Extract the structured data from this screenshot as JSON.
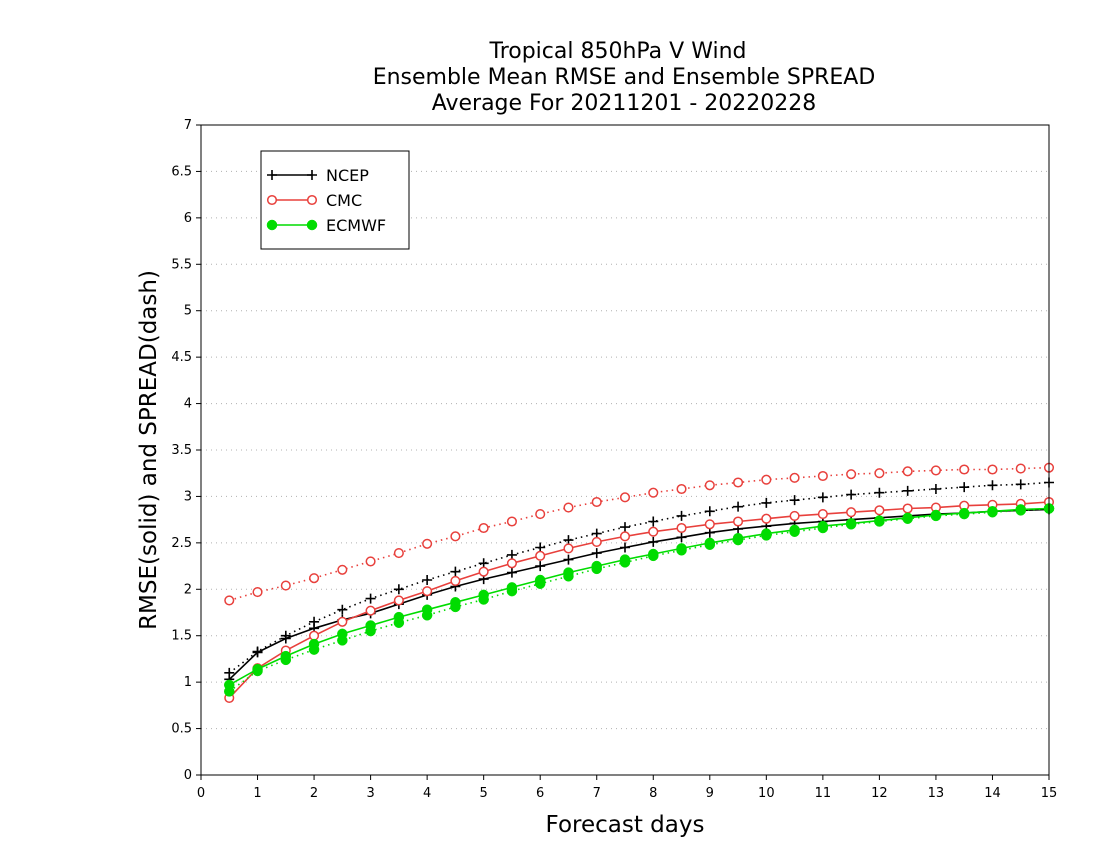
{
  "chart_data": {
    "type": "line",
    "title": [
      "Tropical 850hPa V Wind",
      "Ensemble Mean RMSE and Ensemble SPREAD",
      "Average For 20211201 - 20220228"
    ],
    "xlabel": "Forecast days",
    "ylabel": "RMSE(solid) and SPREAD(dash)",
    "xlim": [
      0,
      15
    ],
    "ylim": [
      0,
      7
    ],
    "xticks": [
      "0",
      "1",
      "2",
      "3",
      "4",
      "5",
      "6",
      "7",
      "8",
      "9",
      "10",
      "11",
      "12",
      "13",
      "14",
      "15"
    ],
    "yticks": [
      "0",
      "0.5",
      "1",
      "1.5",
      "2",
      "2.5",
      "3",
      "3.5",
      "4",
      "4.5",
      "5",
      "5.5",
      "6",
      "6.5",
      "7"
    ],
    "grid": "horizontal dotted",
    "legend_position": "top-left",
    "x": [
      0.5,
      1,
      1.5,
      2,
      2.5,
      3,
      3.5,
      4,
      4.5,
      5,
      5.5,
      6,
      6.5,
      7,
      7.5,
      8,
      8.5,
      9,
      9.5,
      10,
      10.5,
      11,
      11.5,
      12,
      12.5,
      13,
      13.5,
      14,
      14.5,
      15
    ],
    "series": [
      {
        "name": "NCEP",
        "color": "#000000",
        "marker": "plus",
        "rmse": [
          1.03,
          1.32,
          1.47,
          1.58,
          1.67,
          1.74,
          1.84,
          1.94,
          2.03,
          2.11,
          2.18,
          2.25,
          2.32,
          2.39,
          2.45,
          2.51,
          2.56,
          2.61,
          2.65,
          2.68,
          2.71,
          2.73,
          2.75,
          2.77,
          2.79,
          2.81,
          2.82,
          2.84,
          2.85,
          2.86
        ],
        "spread": [
          1.1,
          1.33,
          1.5,
          1.65,
          1.78,
          1.9,
          2.0,
          2.1,
          2.19,
          2.28,
          2.37,
          2.45,
          2.53,
          2.6,
          2.67,
          2.73,
          2.79,
          2.84,
          2.89,
          2.93,
          2.96,
          2.99,
          3.02,
          3.04,
          3.06,
          3.08,
          3.1,
          3.12,
          3.13,
          3.15
        ]
      },
      {
        "name": "CMC",
        "color": "#e8403c",
        "marker": "open-circle",
        "rmse": [
          0.83,
          1.15,
          1.34,
          1.5,
          1.65,
          1.77,
          1.88,
          1.98,
          2.09,
          2.19,
          2.28,
          2.36,
          2.44,
          2.51,
          2.57,
          2.62,
          2.66,
          2.7,
          2.73,
          2.76,
          2.79,
          2.81,
          2.83,
          2.85,
          2.87,
          2.88,
          2.9,
          2.91,
          2.92,
          2.94
        ],
        "spread": [
          1.88,
          1.97,
          2.04,
          2.12,
          2.21,
          2.3,
          2.39,
          2.49,
          2.57,
          2.66,
          2.73,
          2.81,
          2.88,
          2.94,
          2.99,
          3.04,
          3.08,
          3.12,
          3.15,
          3.18,
          3.2,
          3.22,
          3.24,
          3.25,
          3.27,
          3.28,
          3.29,
          3.29,
          3.3,
          3.31
        ]
      },
      {
        "name": "ECMWF",
        "color": "#00dc00",
        "marker": "filled-circle",
        "rmse": [
          0.97,
          1.14,
          1.28,
          1.41,
          1.52,
          1.61,
          1.7,
          1.78,
          1.86,
          1.94,
          2.02,
          2.1,
          2.18,
          2.25,
          2.32,
          2.38,
          2.44,
          2.5,
          2.55,
          2.6,
          2.64,
          2.68,
          2.71,
          2.74,
          2.77,
          2.8,
          2.82,
          2.84,
          2.86,
          2.87
        ],
        "spread": [
          0.9,
          1.12,
          1.24,
          1.35,
          1.45,
          1.55,
          1.64,
          1.72,
          1.81,
          1.89,
          1.98,
          2.06,
          2.14,
          2.22,
          2.29,
          2.36,
          2.42,
          2.48,
          2.53,
          2.58,
          2.62,
          2.66,
          2.7,
          2.73,
          2.76,
          2.79,
          2.81,
          2.83,
          2.85,
          2.87
        ]
      }
    ]
  }
}
